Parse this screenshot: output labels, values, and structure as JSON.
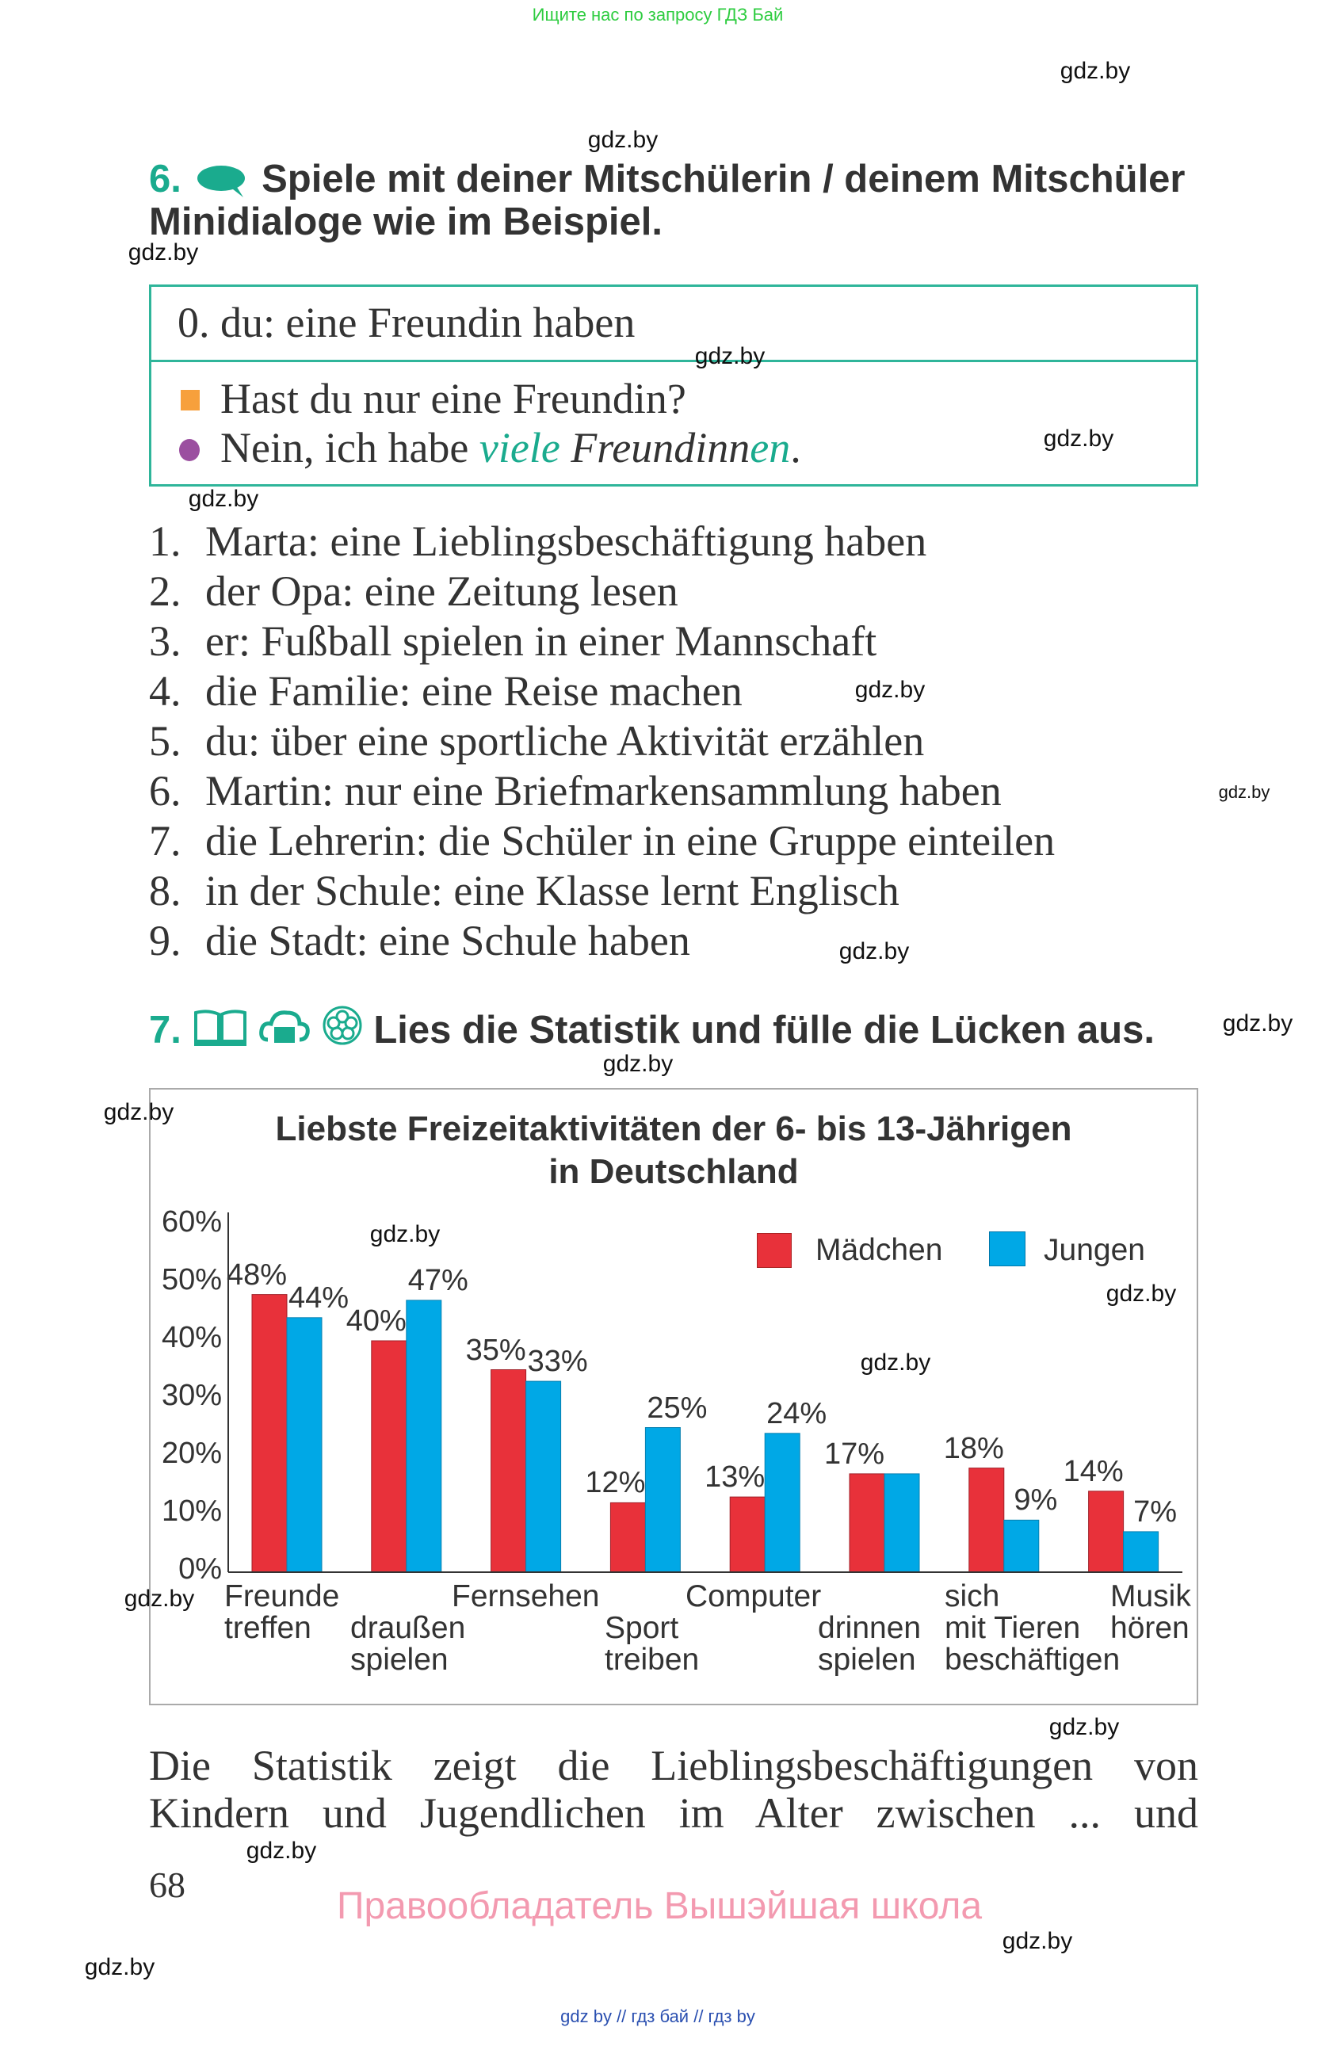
{
  "banner": "Ищите нас по запросу ГДЗ Бай",
  "watermark": "gdz.by",
  "exercise6": {
    "number": "6.",
    "title_line1": "Spiele mit deiner Mitschülerin / deinem Mitschüler",
    "title_line2": "Minidialoge wie im Beispiel.",
    "example": "0. du: eine Freundin haben",
    "question": "Hast du nur eine Freundin?",
    "answer_start": "Nein, ich habe ",
    "answer_viele": "viele",
    "answer_freundinn": "Freundinn",
    "answer_en": "en",
    "answer_end": ".",
    "colors": {
      "accent": "#1aab8e",
      "question_bullet": "#f7a03c",
      "answer_bullet": "#9b4fa0"
    },
    "items": [
      {
        "n": "1.",
        "text": "Marta: eine Lieblingsbeschäftigung haben"
      },
      {
        "n": "2.",
        "text": "der Opa: eine Zeitung lesen"
      },
      {
        "n": "3.",
        "text": "er: Fußball spielen in einer Mannschaft"
      },
      {
        "n": "4.",
        "text": "die Familie: eine Reise machen"
      },
      {
        "n": "5.",
        "text": "du: über eine sportliche Aktivität erzählen"
      },
      {
        "n": "6.",
        "text": "Martin: nur eine Briefmarkensammlung haben"
      },
      {
        "n": "7.",
        "text": "die Lehrerin: die Schüler in eine Gruppe einteilen"
      },
      {
        "n": "8.",
        "text": "in der Schule: eine Klasse lernt Englisch"
      },
      {
        "n": "9.",
        "text": "die Stadt: eine Schule haben"
      }
    ]
  },
  "exercise7": {
    "number": "7.",
    "icons": [
      "book-icon",
      "cloud-folder-icon",
      "flower-icon"
    ],
    "title": "Lies die Statistik und fülle die Lücken aus."
  },
  "chart_data": {
    "type": "bar",
    "title_line1": "Liebste Freizeitaktivitäten der 6- bis 13-Jährigen",
    "title_line2": "in Deutschland",
    "ylim": [
      0,
      60
    ],
    "yticks": [
      "0%",
      "10%",
      "20%",
      "30%",
      "40%",
      "50%",
      "60%"
    ],
    "legend_position": "top-right",
    "categories": [
      [
        "Freunde",
        "treffen"
      ],
      [
        "draußen",
        "spielen"
      ],
      [
        "Fernsehen"
      ],
      [
        "Sport",
        "treiben"
      ],
      [
        "Computer"
      ],
      [
        "drinnen",
        "spielen"
      ],
      [
        "sich",
        "mit Tieren",
        "beschäftigen"
      ],
      [
        "Musik",
        "hören"
      ]
    ],
    "series": [
      {
        "name": "Mädchen",
        "color": "#e8313a",
        "values": [
          48,
          40,
          35,
          12,
          13,
          17,
          18,
          14
        ],
        "labels": [
          "48%",
          "40%",
          "35%",
          "12%",
          "13%",
          "17%",
          "18%",
          "14%"
        ]
      },
      {
        "name": "Jungen",
        "color": "#00a8e6",
        "values": [
          44,
          47,
          33,
          25,
          24,
          17,
          9,
          7
        ],
        "labels": [
          "44%",
          "47%",
          "33%",
          "25%",
          "24%",
          "",
          "9%",
          "7%"
        ]
      }
    ]
  },
  "paragraph": {
    "line1": "Die Statistik zeigt die Lieblingsbeschäftigungen von",
    "line2": "Kindern und Jugendlichen im Alter zwischen ... und"
  },
  "page_number": "68",
  "copyright": "Правообладатель Вышэйшая школа",
  "footer": "gdz by  //  гдз бай  //  гдз by"
}
